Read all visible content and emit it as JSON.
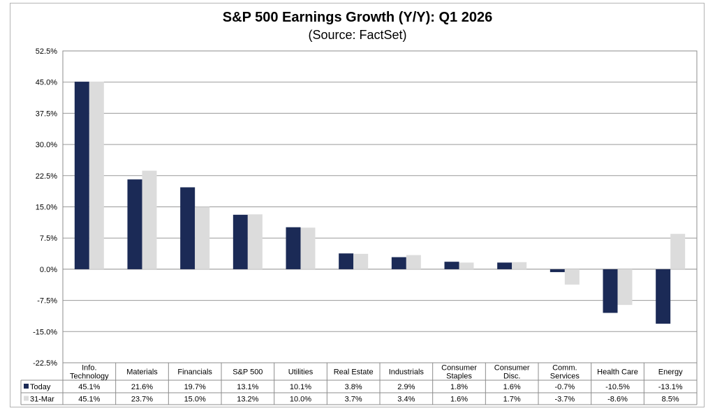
{
  "chart_data": {
    "type": "bar",
    "title": "S&P 500 Earnings Growth (Y/Y): Q1 2026",
    "subtitle": "(Source: FactSet)",
    "ylim": [
      -22.5,
      52.5
    ],
    "yticks": [
      "52.5%",
      "45.0%",
      "37.5%",
      "30.0%",
      "22.5%",
      "15.0%",
      "7.5%",
      "0.0%",
      "-7.5%",
      "-15.0%",
      "-22.5%"
    ],
    "ytick_values": [
      52.5,
      45.0,
      37.5,
      30.0,
      22.5,
      15.0,
      7.5,
      0.0,
      -7.5,
      -15.0,
      -22.5
    ],
    "categories": [
      [
        "Info.",
        "Technology"
      ],
      [
        "Materials"
      ],
      [
        "Financials"
      ],
      [
        "S&P 500"
      ],
      [
        "Utilities"
      ],
      [
        "Real Estate"
      ],
      [
        "Industrials"
      ],
      [
        "Consumer",
        "Staples"
      ],
      [
        "Consumer",
        "Disc."
      ],
      [
        "Comm.",
        "Services"
      ],
      [
        "Health Care"
      ],
      [
        "Energy"
      ]
    ],
    "series": [
      {
        "name": "Today",
        "color": "#1b2a56",
        "values": [
          45.1,
          21.6,
          19.7,
          13.1,
          10.1,
          3.8,
          2.9,
          1.8,
          1.6,
          -0.7,
          -10.5,
          -13.1
        ],
        "labels": [
          "45.1%",
          "21.6%",
          "19.7%",
          "13.1%",
          "10.1%",
          "3.8%",
          "2.9%",
          "1.8%",
          "1.6%",
          "-0.7%",
          "-10.5%",
          "-13.1%"
        ]
      },
      {
        "name": "31-Mar",
        "color": "#dcdcdc",
        "values": [
          45.1,
          23.7,
          15.0,
          13.2,
          10.0,
          3.7,
          3.4,
          1.6,
          1.7,
          -3.7,
          -8.6,
          8.5
        ],
        "labels": [
          "45.1%",
          "23.7%",
          "15.0%",
          "13.2%",
          "10.0%",
          "3.7%",
          "3.4%",
          "1.6%",
          "1.7%",
          "-3.7%",
          "-8.6%",
          "8.5%"
        ]
      }
    ],
    "legend": "data-table"
  }
}
